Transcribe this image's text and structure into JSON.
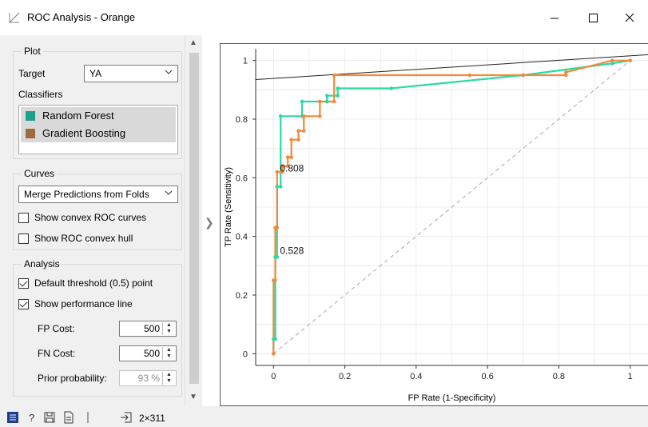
{
  "window": {
    "title": "ROC Analysis - Orange",
    "minimize_glyph": "—",
    "maximize_glyph": "☐",
    "close_glyph": "✕"
  },
  "plot_box": {
    "title": "Plot",
    "target_label": "Target",
    "target_value": "YA",
    "classifiers_label": "Classifiers",
    "classifiers": [
      {
        "name": "Random Forest",
        "color": "#1f9e8e"
      },
      {
        "name": "Gradient Boosting",
        "color": "#9e6a40"
      }
    ]
  },
  "curves_box": {
    "title": "Curves",
    "merge_value": "Merge Predictions from Folds",
    "show_convex_roc": {
      "label": "Show convex ROC curves",
      "checked": false
    },
    "show_convex_hull": {
      "label": "Show ROC convex hull",
      "checked": false
    }
  },
  "analysis_box": {
    "title": "Analysis",
    "default_threshold": {
      "label": "Default threshold (0.5) point",
      "checked": true
    },
    "performance_line": {
      "label": "Show performance line",
      "checked": true
    },
    "fp_cost": {
      "label": "FP Cost:",
      "value": "500"
    },
    "fn_cost": {
      "label": "FN Cost:",
      "value": "500"
    },
    "prior": {
      "label": "Prior probability:",
      "value": "93 %"
    }
  },
  "status": {
    "data_shape": "2×311",
    "icons": [
      "menu-icon",
      "help-icon",
      "save-icon",
      "report-icon",
      "input-icon"
    ]
  },
  "colors": {
    "random_forest_line": "#2bd9a4",
    "gradient_boosting_line": "#f08a3c",
    "performance_line": "#222222",
    "diagonal": "#aaaaaa"
  },
  "chart_data": {
    "type": "line",
    "xlabel": "FP Rate (1-Specificity)",
    "ylabel": "TP Rate (Sensitivity)",
    "xlim": [
      -0.05,
      1.05
    ],
    "ylim": [
      -0.04,
      1.04
    ],
    "x_ticks": [
      0,
      0.2,
      0.4,
      0.6,
      0.8,
      1
    ],
    "x_tick_labels": [
      "0",
      "0.2",
      "0.4",
      "0.6",
      "0.8",
      "1"
    ],
    "y_ticks": [
      0,
      0.2,
      0.4,
      0.6,
      0.8,
      1
    ],
    "y_tick_labels": [
      "0",
      "0.2",
      "0.4",
      "0.6",
      "0.8",
      "1"
    ],
    "grid": true,
    "annotations": [
      {
        "text": "0.808",
        "x": 0.0,
        "y": 0.58
      },
      {
        "text": "0.528",
        "x": 0.0,
        "y": 0.3
      }
    ],
    "series": [
      {
        "name": "Random Forest",
        "x": [
          0.0,
          0.0,
          0.005,
          0.005,
          0.01,
          0.01,
          0.02,
          0.02,
          0.08,
          0.08,
          0.15,
          0.15,
          0.18,
          0.18,
          0.33,
          0.7,
          0.95,
          1.0
        ],
        "y": [
          0.0,
          0.05,
          0.05,
          0.33,
          0.33,
          0.57,
          0.57,
          0.81,
          0.81,
          0.86,
          0.86,
          0.88,
          0.88,
          0.905,
          0.905,
          0.95,
          0.99,
          1.0
        ]
      },
      {
        "name": "Gradient Boosting",
        "x": [
          0.0,
          0.0,
          0.005,
          0.005,
          0.01,
          0.01,
          0.025,
          0.025,
          0.04,
          0.04,
          0.05,
          0.05,
          0.07,
          0.07,
          0.085,
          0.085,
          0.13,
          0.13,
          0.17,
          0.17,
          0.55,
          0.7,
          0.82,
          0.82,
          0.95,
          1.0
        ],
        "y": [
          0.0,
          0.25,
          0.25,
          0.43,
          0.43,
          0.62,
          0.62,
          0.64,
          0.64,
          0.67,
          0.67,
          0.73,
          0.73,
          0.76,
          0.76,
          0.81,
          0.81,
          0.86,
          0.86,
          0.95,
          0.95,
          0.95,
          0.95,
          0.96,
          1.0,
          1.0
        ]
      }
    ],
    "reference_lines": [
      {
        "name": "performance-line",
        "x": [
          -0.05,
          1.05
        ],
        "y": [
          0.935,
          1.02
        ]
      },
      {
        "name": "diagonal",
        "x": [
          0,
          1
        ],
        "y": [
          0,
          1
        ]
      }
    ]
  }
}
